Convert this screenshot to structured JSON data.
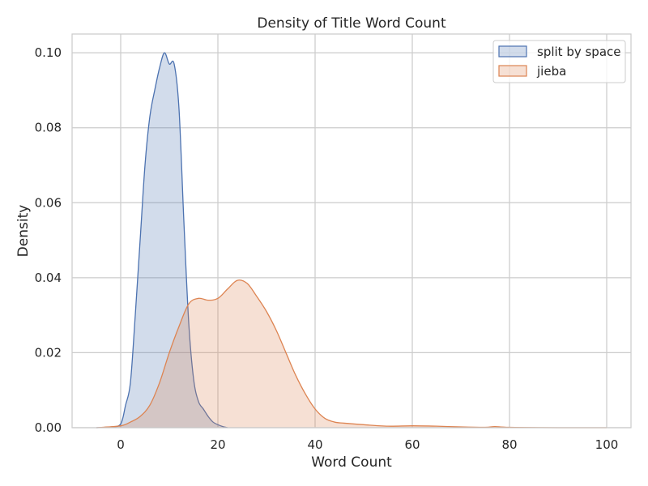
{
  "chart_data": {
    "type": "area",
    "title": "Density of Title Word Count",
    "xlabel": "Word Count",
    "ylabel": "Density",
    "xlim": [
      -10,
      105
    ],
    "ylim": [
      0,
      0.105
    ],
    "xticks": [
      0,
      20,
      40,
      60,
      80,
      100
    ],
    "xtick_labels": [
      "0",
      "20",
      "40",
      "60",
      "80",
      "100"
    ],
    "yticks": [
      0,
      0.02,
      0.04,
      0.06,
      0.08,
      0.1
    ],
    "ytick_labels": [
      "0.00",
      "0.02",
      "0.04",
      "0.06",
      "0.08",
      "0.10"
    ],
    "grid": true,
    "legend_position": "top-right",
    "series": [
      {
        "name": "split by space",
        "line_color": "#4c72b0",
        "fill_color": "#4c72b0",
        "x": [
          -5,
          -2,
          0,
          1,
          2,
          3,
          4,
          5,
          6,
          7,
          8,
          9,
          10,
          11,
          12,
          13,
          14,
          15,
          16,
          17,
          18,
          19,
          20,
          21,
          22
        ],
        "y": [
          0,
          0.0002,
          0.001,
          0.006,
          0.012,
          0.03,
          0.05,
          0.07,
          0.083,
          0.09,
          0.096,
          0.1,
          0.097,
          0.097,
          0.085,
          0.055,
          0.028,
          0.013,
          0.007,
          0.005,
          0.003,
          0.0015,
          0.0008,
          0.0003,
          0
        ]
      },
      {
        "name": "jieba",
        "line_color": "#dd8452",
        "fill_color": "#dd8452",
        "x": [
          -5,
          0,
          2,
          4,
          6,
          8,
          10,
          12,
          14,
          16,
          18,
          20,
          22,
          24,
          26,
          28,
          30,
          32,
          34,
          36,
          38,
          40,
          42,
          44,
          46,
          50,
          55,
          60,
          65,
          70,
          75,
          77,
          80,
          90,
          100
        ],
        "y": [
          0,
          0.0005,
          0.0015,
          0.003,
          0.006,
          0.012,
          0.02,
          0.027,
          0.033,
          0.0345,
          0.034,
          0.0345,
          0.037,
          0.0393,
          0.0385,
          0.035,
          0.031,
          0.026,
          0.02,
          0.014,
          0.009,
          0.005,
          0.0025,
          0.0015,
          0.0012,
          0.0008,
          0.0004,
          0.0005,
          0.0004,
          0.0002,
          0.0001,
          0.0003,
          0.0001,
          0,
          0
        ]
      }
    ]
  }
}
